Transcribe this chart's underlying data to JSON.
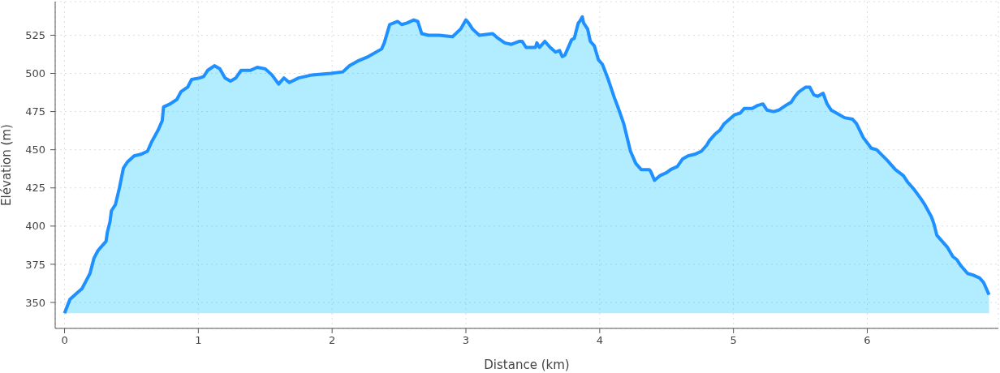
{
  "chart_data": {
    "type": "area",
    "xlabel": "Distance (km)",
    "ylabel": "Élévation (m)",
    "x": [
      0,
      0.04,
      0.09,
      0.13,
      0.16,
      0.19,
      0.22,
      0.25,
      0.27,
      0.31,
      0.32,
      0.34,
      0.35,
      0.38,
      0.41,
      0.44,
      0.47,
      0.52,
      0.57,
      0.62,
      0.65,
      0.7,
      0.73,
      0.74,
      0.79,
      0.84,
      0.87,
      0.92,
      0.95,
      1.01,
      1.04,
      1.07,
      1.12,
      1.16,
      1.2,
      1.24,
      1.28,
      1.32,
      1.39,
      1.44,
      1.5,
      1.55,
      1.6,
      1.64,
      1.68,
      1.75,
      1.85,
      1.99,
      2.08,
      2.13,
      2.19,
      2.27,
      2.37,
      2.39,
      2.43,
      2.46,
      2.49,
      2.52,
      2.56,
      2.61,
      2.64,
      2.67,
      2.72,
      2.8,
      2.9,
      2.96,
      3.0,
      3.02,
      3.05,
      3.1,
      3.2,
      3.24,
      3.29,
      3.34,
      3.4,
      3.42,
      3.45,
      3.52,
      3.53,
      3.55,
      3.56,
      3.59,
      3.63,
      3.67,
      3.7,
      3.72,
      3.74,
      3.79,
      3.81,
      3.84,
      3.85,
      3.87,
      3.88,
      3.91,
      3.93,
      3.96,
      3.99,
      4.02,
      4.06,
      4.11,
      4.14,
      4.18,
      4.23,
      4.27,
      4.31,
      4.37,
      4.38,
      4.41,
      4.45,
      4.5,
      4.53,
      4.58,
      4.62,
      4.66,
      4.71,
      4.76,
      4.8,
      4.82,
      4.86,
      4.9,
      4.93,
      4.97,
      5.01,
      5.05,
      5.08,
      5.14,
      5.18,
      5.22,
      5.25,
      5.3,
      5.34,
      5.39,
      5.43,
      5.46,
      5.49,
      5.54,
      5.57,
      5.6,
      5.63,
      5.67,
      5.7,
      5.73,
      5.77,
      5.83,
      5.89,
      5.92,
      5.97,
      6.03,
      6.07,
      6.15,
      6.21,
      6.27,
      6.3,
      6.35,
      6.4,
      6.43,
      6.48,
      6.5,
      6.52,
      6.56,
      6.6,
      6.64,
      6.67,
      6.7,
      6.75,
      6.79,
      6.84,
      6.87,
      6.91
    ],
    "values": [
      343,
      352,
      356,
      359,
      364,
      369,
      379,
      384,
      386,
      390,
      396,
      403,
      410,
      414,
      425,
      438,
      442,
      446,
      447,
      449,
      455,
      463,
      469,
      478,
      480,
      483,
      488,
      491,
      496,
      497,
      498,
      502,
      505,
      503,
      497,
      495,
      497,
      502,
      502,
      504,
      503,
      499,
      493,
      497,
      494,
      497,
      499,
      500,
      501,
      505,
      508,
      511,
      516,
      520,
      532,
      533,
      534,
      532,
      533,
      535,
      534,
      526,
      525,
      525,
      524,
      529,
      535,
      533,
      529,
      525,
      526,
      523,
      520,
      519,
      521,
      521,
      517,
      517,
      520,
      517,
      518,
      521,
      517,
      514,
      515,
      511,
      512,
      522,
      523,
      533,
      534,
      537,
      533,
      529,
      521,
      518,
      509,
      506,
      497,
      484,
      477,
      467,
      449,
      441,
      437,
      437,
      436,
      430,
      433,
      435,
      437,
      439,
      444,
      446,
      447,
      449,
      453,
      456,
      460,
      463,
      467,
      470,
      473,
      474,
      477,
      477,
      479,
      480,
      476,
      475,
      476,
      479,
      481,
      485,
      488,
      491,
      491,
      486,
      485,
      487,
      480,
      476,
      474,
      471,
      470,
      467,
      458,
      451,
      450,
      443,
      437,
      433,
      429,
      424,
      418,
      414,
      406,
      401,
      394,
      390,
      386,
      380,
      378,
      374,
      369,
      368,
      366,
      363,
      355
    ],
    "color": "#1e90ff",
    "xlim": [
      -0.07,
      6.98
    ],
    "xticks": [
      0,
      1,
      2,
      3,
      4,
      5,
      6
    ],
    "ylim": [
      333,
      547
    ],
    "yticks": [
      350,
      375,
      400,
      425,
      450,
      475,
      500,
      525
    ],
    "grid": true
  }
}
